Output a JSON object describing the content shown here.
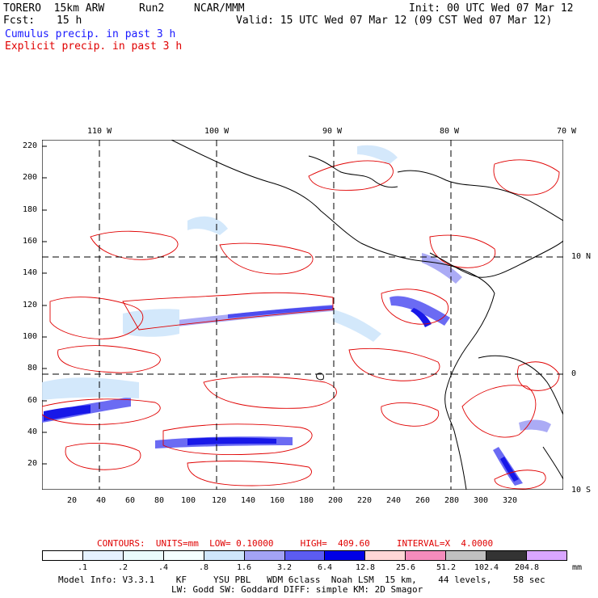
{
  "header": {
    "model": "TORERO  15km ARW",
    "run": "Run2",
    "org": "NCAR/MMM",
    "init": "Init: 00 UTC Wed 07 Mar 12",
    "fcst_label": "Fcst:",
    "fcst_value": "15 h",
    "valid": "Valid: 15 UTC Wed 07 Mar 12 (09 CST Wed 07 Mar 12)",
    "field1": "Cumulus precip. in past 3 h",
    "field2": "Explicit precip. in past 3 h"
  },
  "map": {
    "top_lon_labels": [
      "110 W",
      "100 W",
      "90 W",
      "80 W",
      "70 W"
    ],
    "right_lat_labels": [
      "10 N",
      "0",
      "10 S"
    ],
    "y_ticks": [
      "220",
      "200",
      "180",
      "160",
      "140",
      "120",
      "100",
      "80",
      "60",
      "40",
      "20"
    ],
    "x_ticks": [
      "20",
      "40",
      "60",
      "80",
      "100",
      "120",
      "140",
      "160",
      "180",
      "200",
      "220",
      "240",
      "260",
      "280",
      "300",
      "320"
    ],
    "colors": {
      "coast": "#000000",
      "contour": "#e00000",
      "grid": "#000000"
    }
  },
  "contours_info": {
    "label": "CONTOURS:  UNITS=mm  LOW= 0.10000     HIGH=  409.60     INTERVAL=X  4.0000"
  },
  "legend": {
    "values": [
      ".1",
      ".2",
      ".4",
      ".8",
      "1.6",
      "3.2",
      "6.4",
      "12.8",
      "25.6",
      "51.2",
      "102.4",
      "204.8"
    ],
    "unit": "mm",
    "colors": [
      "#ffffff",
      "#e6f2ff",
      "#eafcfc",
      "#f4ffff",
      "#cfe6fb",
      "#a3a3f5",
      "#5c5cf2",
      "#0000e6",
      "#ffd6d6",
      "#f58cbc",
      "#c0c0c0",
      "#333333",
      "#d9a6ff"
    ]
  },
  "footer": {
    "line1": "Model Info: V3.3.1    KF     YSU PBL   WDM 6class  Noah LSM  15 km,    44 levels,    58 sec",
    "line2": "LW: Godd SW: Goddard DIFF: simple KM: 2D Smagor"
  }
}
